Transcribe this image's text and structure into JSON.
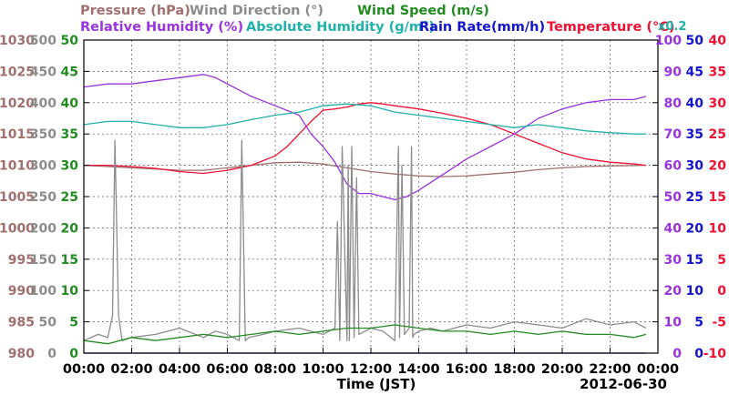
{
  "chart_data": {
    "type": "line",
    "title_lines": [
      [
        {
          "text": "Pressure (hPa)",
          "color": "#a0706e"
        },
        {
          "text": "Wind Direction (°)",
          "color": "#8c8c8c"
        },
        {
          "text": "Wind Speed (m/s)",
          "color": "#228b22"
        }
      ],
      [
        {
          "text": "Relative Humidity (%)",
          "color": "#9933dd"
        },
        {
          "text": "Absolute Humidity (g/m³)",
          "color": "#20b2aa"
        },
        {
          "text": "Rain Rate(mm/h)",
          "color": "#1515cc"
        },
        {
          "text": "Temperature (°C)",
          "color": "#ee1133"
        }
      ]
    ],
    "rain_scale_note": "x0.2",
    "xlabel": "Time (JST)",
    "date_label": "2012-06-30",
    "x_ticks": [
      "00:00",
      "02:00",
      "04:00",
      "06:00",
      "08:00",
      "10:00",
      "12:00",
      "14:00",
      "16:00",
      "18:00",
      "20:00",
      "22:00",
      "00:00"
    ],
    "x_range_hours": [
      0,
      24
    ],
    "grid": true,
    "axes": {
      "pressure": {
        "color": "#a0706e",
        "min": 980,
        "max": 1030,
        "ticks": [
          980,
          985,
          990,
          995,
          1000,
          1005,
          1010,
          1015,
          1020,
          1025,
          1030
        ]
      },
      "wind_direction": {
        "color": "#8c8c8c",
        "min": 0,
        "max": 500,
        "ticks": [
          0,
          50,
          100,
          150,
          200,
          250,
          300,
          350,
          400,
          450,
          500
        ]
      },
      "wind_speed": {
        "color": "#228b22",
        "min": 0,
        "max": 50,
        "ticks": [
          0,
          5,
          10,
          15,
          20,
          25,
          30,
          35,
          40,
          45,
          50
        ]
      },
      "relative_humidity": {
        "color": "#9933dd",
        "min": 0,
        "max": 100,
        "ticks": [
          0,
          10,
          20,
          30,
          40,
          50,
          60,
          70,
          80,
          90,
          100
        ]
      },
      "rain_rate": {
        "color": "#1515cc",
        "min": 0,
        "max": 50,
        "ticks": [
          0,
          5,
          10,
          15,
          20,
          25,
          30,
          35,
          40,
          45,
          50
        ]
      },
      "temperature": {
        "color": "#ee1133",
        "min": -10,
        "max": 40,
        "ticks": [
          -10,
          -5,
          0,
          5,
          10,
          15,
          20,
          25,
          30,
          35,
          40
        ]
      }
    },
    "series": [
      {
        "name": "Pressure (hPa)",
        "axis": "pressure",
        "color": "#a0706e",
        "x": [
          0,
          1,
          2,
          3,
          4,
          5,
          6,
          7,
          8,
          9,
          10,
          11,
          12,
          13,
          14,
          15,
          16,
          17,
          18,
          19,
          20,
          21,
          22,
          23.5
        ],
        "y": [
          1010,
          1009.8,
          1009.6,
          1009.4,
          1009.2,
          1009.2,
          1009.6,
          1010,
          1010.4,
          1010.5,
          1010.2,
          1009.6,
          1009,
          1008.6,
          1008.3,
          1008.2,
          1008.3,
          1008.6,
          1008.9,
          1009.3,
          1009.6,
          1009.8,
          1009.9,
          1010
        ]
      },
      {
        "name": "Temperature (°C)",
        "axis": "temperature",
        "color": "#ee1133",
        "x": [
          0,
          1,
          2,
          3,
          4,
          5,
          6,
          7,
          8,
          8.5,
          9,
          9.5,
          10,
          10.5,
          11,
          11.5,
          12,
          12.5,
          13,
          14,
          15,
          16,
          17,
          18,
          19,
          20,
          21,
          22,
          23,
          23.5
        ],
        "y": [
          20,
          20,
          19.8,
          19.5,
          19,
          18.7,
          19.2,
          20,
          21.5,
          23,
          25,
          27,
          28.8,
          29,
          29.3,
          29.8,
          30,
          29.8,
          29.5,
          29,
          28.3,
          27.5,
          26.5,
          25,
          23.5,
          22,
          21,
          20.5,
          20.2,
          20
        ]
      },
      {
        "name": "Relative Humidity (%)",
        "axis": "relative_humidity",
        "color": "#9933dd",
        "x": [
          0,
          1,
          2,
          3,
          4,
          5,
          5.5,
          6,
          7,
          8,
          9,
          9.5,
          10,
          10.5,
          11,
          11.5,
          12,
          12.5,
          13,
          13.5,
          14,
          15,
          16,
          17,
          18,
          19,
          20,
          21,
          22,
          23,
          23.5
        ],
        "y": [
          85,
          86,
          86,
          87,
          88,
          89,
          88,
          86,
          82,
          79,
          76,
          70,
          66,
          61,
          54,
          51,
          51,
          50,
          49,
          50,
          52,
          57,
          62,
          66,
          70,
          75,
          78,
          80,
          81,
          81,
          82
        ]
      },
      {
        "name": "Absolute Humidity (g/m³)",
        "axis": "wind_speed",
        "color": "#20b2aa",
        "x": [
          0,
          1,
          2,
          3,
          4,
          5,
          6,
          7,
          8,
          9,
          10,
          11,
          12,
          13,
          14,
          15,
          16,
          17,
          18,
          19,
          20,
          21,
          22,
          23,
          23.5
        ],
        "y": [
          36.5,
          37,
          37,
          36.5,
          36,
          36,
          36.5,
          37.3,
          38,
          38.5,
          39.5,
          39.8,
          39.5,
          38.5,
          38,
          37.5,
          37,
          36.5,
          36,
          36.5,
          36,
          35.5,
          35.2,
          35,
          35
        ]
      },
      {
        "name": "Wind Direction (°)",
        "axis": "wind_direction",
        "color": "#8c8c8c",
        "x": [
          0,
          0.6,
          1.0,
          1.2,
          1.3,
          1.45,
          1.6,
          2,
          3,
          4,
          5,
          5.5,
          6,
          6.5,
          6.6,
          6.75,
          6.9,
          7.5,
          8,
          9,
          10,
          10.5,
          10.6,
          10.7,
          10.8,
          11.0,
          11.05,
          11.1,
          11.2,
          11.3,
          11.4,
          11.5,
          12,
          12.5,
          13,
          13.15,
          13.2,
          13.3,
          13.4,
          13.6,
          13.7,
          13.75,
          13.8,
          14,
          14.5,
          15,
          16,
          17,
          18,
          19,
          20,
          21,
          22,
          23,
          23.5
        ],
        "y": [
          20,
          30,
          25,
          60,
          340,
          60,
          20,
          25,
          30,
          40,
          25,
          35,
          30,
          20,
          340,
          20,
          25,
          30,
          35,
          40,
          30,
          40,
          210,
          20,
          330,
          20,
          300,
          20,
          330,
          25,
          280,
          30,
          40,
          35,
          20,
          330,
          25,
          300,
          30,
          40,
          330,
          25,
          30,
          35,
          40,
          35,
          45,
          40,
          50,
          45,
          40,
          55,
          45,
          50,
          40
        ]
      },
      {
        "name": "Wind Speed (m/s)",
        "axis": "wind_speed",
        "color": "#228b22",
        "x": [
          0,
          1,
          2,
          3,
          4,
          5,
          6,
          7,
          8,
          9,
          10,
          11,
          12,
          13,
          14,
          15,
          16,
          17,
          18,
          19,
          20,
          21,
          22,
          23,
          23.5
        ],
        "y": [
          2,
          1.5,
          2.5,
          2,
          2.5,
          3,
          2.5,
          3,
          3.5,
          3,
          3.5,
          4,
          4,
          4.5,
          4,
          3.5,
          3.5,
          3,
          3.5,
          3,
          3.5,
          3,
          3,
          2.5,
          3
        ]
      },
      {
        "name": "Rain Rate(mm/h)",
        "axis": "rain_rate",
        "color": "#1515cc",
        "x": [
          0,
          23.5
        ],
        "y": [
          0,
          0
        ]
      }
    ]
  }
}
